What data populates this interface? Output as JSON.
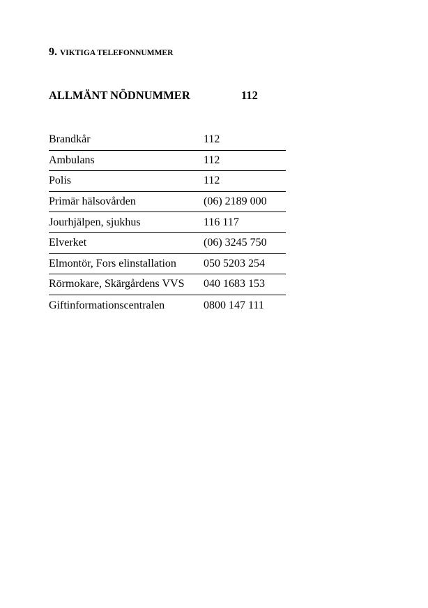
{
  "heading": {
    "number": "9.",
    "title": "VIKTIGA TELEFONNUMMER"
  },
  "emergency": {
    "label": "ALLMÄNT NÖDNUMMER",
    "number": "112"
  },
  "contacts": [
    {
      "name": "Brandkår",
      "phone": "112"
    },
    {
      "name": "Ambulans",
      "phone": "112"
    },
    {
      "name": "Polis",
      "phone": "112"
    },
    {
      "name": "Primär hälsovården",
      "phone": "(06) 2189 000"
    },
    {
      "name": "Jourhjälpen, sjukhus",
      "phone": "116 117"
    },
    {
      "name": "Elverket",
      "phone": "(06) 3245 750"
    },
    {
      "name": "Elmontör, Fors elinstallation",
      "phone": "050 5203 254"
    },
    {
      "name": "Rörmokare, Skärgårdens VVS",
      "phone": "040 1683 153"
    },
    {
      "name": "Giftinformationscentralen",
      "phone": "0800 147 111"
    }
  ]
}
